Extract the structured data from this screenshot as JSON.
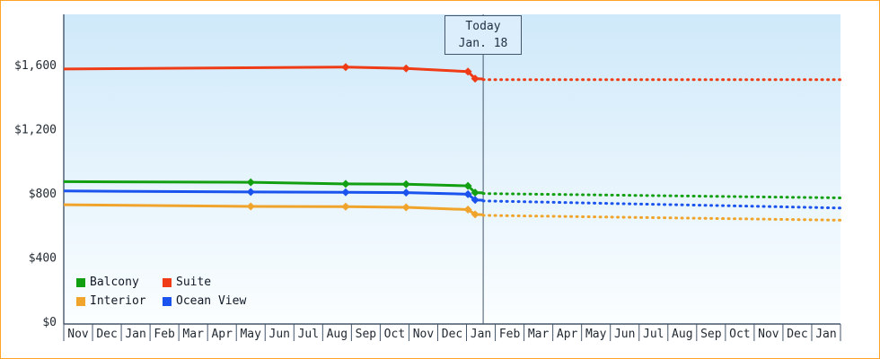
{
  "chart_data": {
    "type": "line",
    "title": "",
    "xlabel": "",
    "ylabel": "",
    "x_tick_labels": [
      "Nov",
      "Dec",
      "Jan",
      "Feb",
      "Mar",
      "Apr",
      "May",
      "Jun",
      "Jul",
      "Aug",
      "Sep",
      "Oct",
      "Nov",
      "Dec",
      "Jan",
      "Feb",
      "Mar",
      "Apr",
      "May",
      "Jun",
      "Jul",
      "Aug",
      "Sep",
      "Oct",
      "Nov",
      "Dec",
      "Jan"
    ],
    "y_ticks": [
      0,
      400,
      800,
      1200,
      1600
    ],
    "y_tick_labels": [
      "$0",
      "$400",
      "$800",
      "$1,200",
      "$1,600"
    ],
    "ylim": [
      0,
      1920
    ],
    "grid": "off",
    "legend_position": "bottom-left-inside",
    "today": {
      "line1": "Today",
      "line2": "Jan. 18",
      "x": 14.58
    },
    "series": [
      {
        "name": "Balcony",
        "color": "#12a012",
        "solid": [
          [
            0,
            876
          ],
          [
            6.5,
            872
          ],
          [
            9.8,
            862
          ],
          [
            11.9,
            860
          ],
          [
            14.05,
            850
          ],
          [
            14.3,
            808
          ],
          [
            14.58,
            806
          ]
        ],
        "markers": [
          [
            6.5,
            872
          ],
          [
            9.8,
            862
          ],
          [
            11.9,
            860
          ],
          [
            14.05,
            850
          ],
          [
            14.3,
            808
          ]
        ],
        "dotted": [
          [
            14.58,
            802
          ],
          [
            27,
            775
          ]
        ]
      },
      {
        "name": "Suite",
        "color": "#ef3b16",
        "solid": [
          [
            0,
            1578
          ],
          [
            9.8,
            1590
          ],
          [
            11.9,
            1582
          ],
          [
            14.05,
            1562
          ],
          [
            14.3,
            1518
          ],
          [
            14.58,
            1516
          ]
        ],
        "markers": [
          [
            9.8,
            1590
          ],
          [
            11.9,
            1582
          ],
          [
            14.05,
            1562
          ],
          [
            14.3,
            1518
          ]
        ],
        "dotted": [
          [
            14.58,
            1512
          ],
          [
            27,
            1512
          ]
        ]
      },
      {
        "name": "Interior",
        "color": "#f0a42c",
        "solid": [
          [
            0,
            732
          ],
          [
            6.5,
            722
          ],
          [
            9.8,
            720
          ],
          [
            11.9,
            716
          ],
          [
            14.05,
            702
          ],
          [
            14.3,
            672
          ],
          [
            14.58,
            670
          ]
        ],
        "markers": [
          [
            6.5,
            722
          ],
          [
            9.8,
            720
          ],
          [
            11.9,
            716
          ],
          [
            14.05,
            702
          ],
          [
            14.3,
            672
          ]
        ],
        "dotted": [
          [
            14.58,
            666
          ],
          [
            27,
            636
          ]
        ]
      },
      {
        "name": "Ocean View",
        "color": "#1a53ee",
        "solid": [
          [
            0,
            818
          ],
          [
            6.5,
            812
          ],
          [
            9.8,
            810
          ],
          [
            11.9,
            808
          ],
          [
            14.05,
            798
          ],
          [
            14.3,
            762
          ],
          [
            14.58,
            760
          ]
        ],
        "markers": [
          [
            6.5,
            812
          ],
          [
            9.8,
            810
          ],
          [
            11.9,
            808
          ],
          [
            14.05,
            798
          ],
          [
            14.3,
            762
          ]
        ],
        "dotted": [
          [
            14.58,
            756
          ],
          [
            27,
            712
          ]
        ]
      }
    ],
    "colors": {
      "plot_bg_top": "#cfe9fa",
      "plot_bg_bottom": "#fbfeff",
      "axis": "#44566b",
      "text": "#222a33",
      "frame_border": "#ffa228",
      "today_box_bg": "#dceefb"
    }
  }
}
